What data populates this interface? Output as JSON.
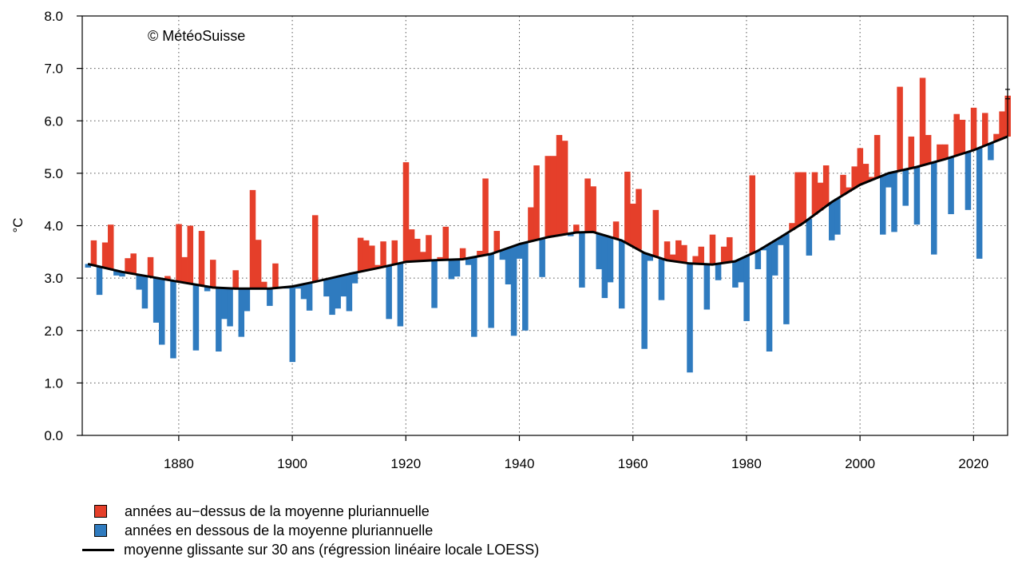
{
  "chart_data": {
    "type": "bar",
    "copyright": "© MétéoSuisse",
    "ylabel": "°C",
    "xlabel": "",
    "ylim": [
      0,
      8
    ],
    "xlim": [
      1863,
      2026
    ],
    "y_ticks": [
      "0.0",
      "1.0",
      "2.0",
      "3.0",
      "4.0",
      "5.0",
      "6.0",
      "7.0",
      "8.0"
    ],
    "x_ticks": [
      "1880",
      "1900",
      "1920",
      "1940",
      "1960",
      "1980",
      "2000",
      "2020"
    ],
    "grid": true,
    "legend_position": "bottom-left",
    "colors": {
      "above": "#E53F2A",
      "below": "#2F7BBF",
      "line": "#000000"
    },
    "legend": [
      {
        "label": "années au−dessus de la moyenne pluriannuelle",
        "kind": "above"
      },
      {
        "label": "années en dessous de la moyenne pluriannuelle",
        "kind": "below"
      },
      {
        "label": "moyenne glissante sur 30 ans (régression linéaire locale LOESS)",
        "kind": "line"
      }
    ],
    "years": [
      1864,
      1865,
      1866,
      1867,
      1868,
      1869,
      1870,
      1871,
      1872,
      1873,
      1874,
      1875,
      1876,
      1877,
      1878,
      1879,
      1880,
      1881,
      1882,
      1883,
      1884,
      1885,
      1886,
      1887,
      1888,
      1889,
      1890,
      1891,
      1892,
      1893,
      1894,
      1895,
      1896,
      1897,
      1898,
      1899,
      1900,
      1901,
      1902,
      1903,
      1904,
      1905,
      1906,
      1907,
      1908,
      1909,
      1910,
      1911,
      1912,
      1913,
      1914,
      1915,
      1916,
      1917,
      1918,
      1919,
      1920,
      1921,
      1922,
      1923,
      1924,
      1925,
      1926,
      1927,
      1928,
      1929,
      1930,
      1931,
      1932,
      1933,
      1934,
      1935,
      1936,
      1937,
      1938,
      1939,
      1940,
      1941,
      1942,
      1943,
      1944,
      1945,
      1946,
      1947,
      1948,
      1949,
      1950,
      1951,
      1952,
      1953,
      1954,
      1955,
      1956,
      1957,
      1958,
      1959,
      1960,
      1961,
      1962,
      1963,
      1964,
      1965,
      1966,
      1967,
      1968,
      1969,
      1970,
      1971,
      1972,
      1973,
      1974,
      1975,
      1976,
      1977,
      1978,
      1979,
      1980,
      1981,
      1982,
      1983,
      1984,
      1985,
      1986,
      1987,
      1988,
      1989,
      1990,
      1991,
      1992,
      1993,
      1994,
      1995,
      1996,
      1997,
      1998,
      1999,
      2000,
      2001,
      2002,
      2003,
      2004,
      2005,
      2006,
      2007,
      2008,
      2009,
      2010,
      2011,
      2012,
      2013,
      2014,
      2015,
      2016,
      2017,
      2018,
      2019,
      2020,
      2021,
      2022,
      2023,
      2024,
      2025,
      2026
    ],
    "values": [
      3.2,
      3.72,
      2.68,
      3.68,
      4.02,
      3.05,
      3.03,
      3.38,
      3.47,
      2.78,
      2.42,
      3.4,
      2.15,
      1.73,
      3.04,
      1.47,
      4.03,
      3.4,
      4.0,
      1.62,
      3.9,
      2.75,
      3.35,
      1.6,
      2.22,
      2.08,
      3.15,
      1.88,
      2.37,
      4.68,
      3.73,
      2.93,
      2.47,
      3.28,
      2.82,
      2.8,
      1.4,
      2.8,
      2.6,
      2.38,
      4.2,
      2.96,
      2.65,
      2.3,
      2.42,
      2.65,
      2.37,
      2.9,
      3.77,
      3.72,
      3.62,
      3.25,
      3.7,
      2.22,
      3.72,
      2.08,
      5.21,
      3.93,
      3.75,
      3.5,
      3.82,
      2.43,
      3.4,
      3.98,
      2.98,
      3.03,
      3.57,
      3.25,
      1.88,
      3.52,
      4.9,
      2.05,
      3.9,
      3.35,
      2.88,
      1.9,
      3.37,
      2.0,
      4.35,
      5.15,
      3.02,
      5.33,
      5.33,
      5.73,
      5.62,
      3.8,
      4.02,
      2.82,
      4.9,
      4.75,
      3.17,
      2.62,
      2.92,
      4.08,
      2.42,
      5.03,
      4.42,
      4.7,
      1.65,
      3.33,
      4.3,
      2.58,
      3.7,
      3.45,
      3.72,
      3.63,
      1.2,
      3.42,
      3.6,
      2.4,
      3.83,
      2.96,
      3.6,
      3.78,
      2.82,
      2.92,
      2.18,
      4.96,
      3.17,
      3.53,
      1.6,
      3.05,
      3.63,
      2.12,
      4.05,
      5.02,
      5.02,
      3.43,
      5.02,
      4.82,
      5.15,
      3.72,
      3.83,
      4.97,
      4.73,
      5.13,
      5.48,
      5.18,
      4.93,
      5.73,
      3.83,
      4.73,
      3.88,
      6.65,
      4.38,
      5.7,
      4.02,
      6.82,
      5.73,
      3.45,
      5.55,
      5.55,
      4.22,
      6.13,
      6.02,
      4.3,
      6.25,
      3.37,
      6.15,
      5.25,
      5.75,
      6.18,
      6.48
    ],
    "trend_years": [
      1864,
      1870,
      1880,
      1886,
      1890,
      1896,
      1900,
      1904,
      1910,
      1915,
      1920,
      1925,
      1930,
      1935,
      1940,
      1945,
      1950,
      1953,
      1958,
      1962,
      1966,
      1970,
      1974,
      1978,
      1982,
      1986,
      1990,
      1995,
      2000,
      2005,
      2010,
      2015,
      2020,
      2026
    ],
    "trend_values": [
      3.27,
      3.12,
      2.93,
      2.82,
      2.8,
      2.8,
      2.84,
      2.93,
      3.08,
      3.19,
      3.31,
      3.34,
      3.36,
      3.46,
      3.65,
      3.78,
      3.87,
      3.88,
      3.72,
      3.48,
      3.34,
      3.28,
      3.26,
      3.32,
      3.52,
      3.78,
      4.05,
      4.45,
      4.78,
      5.0,
      5.12,
      5.27,
      5.44,
      5.7
    ],
    "error_bar": {
      "year": 2026,
      "low": 6.42,
      "high": 6.6
    }
  }
}
